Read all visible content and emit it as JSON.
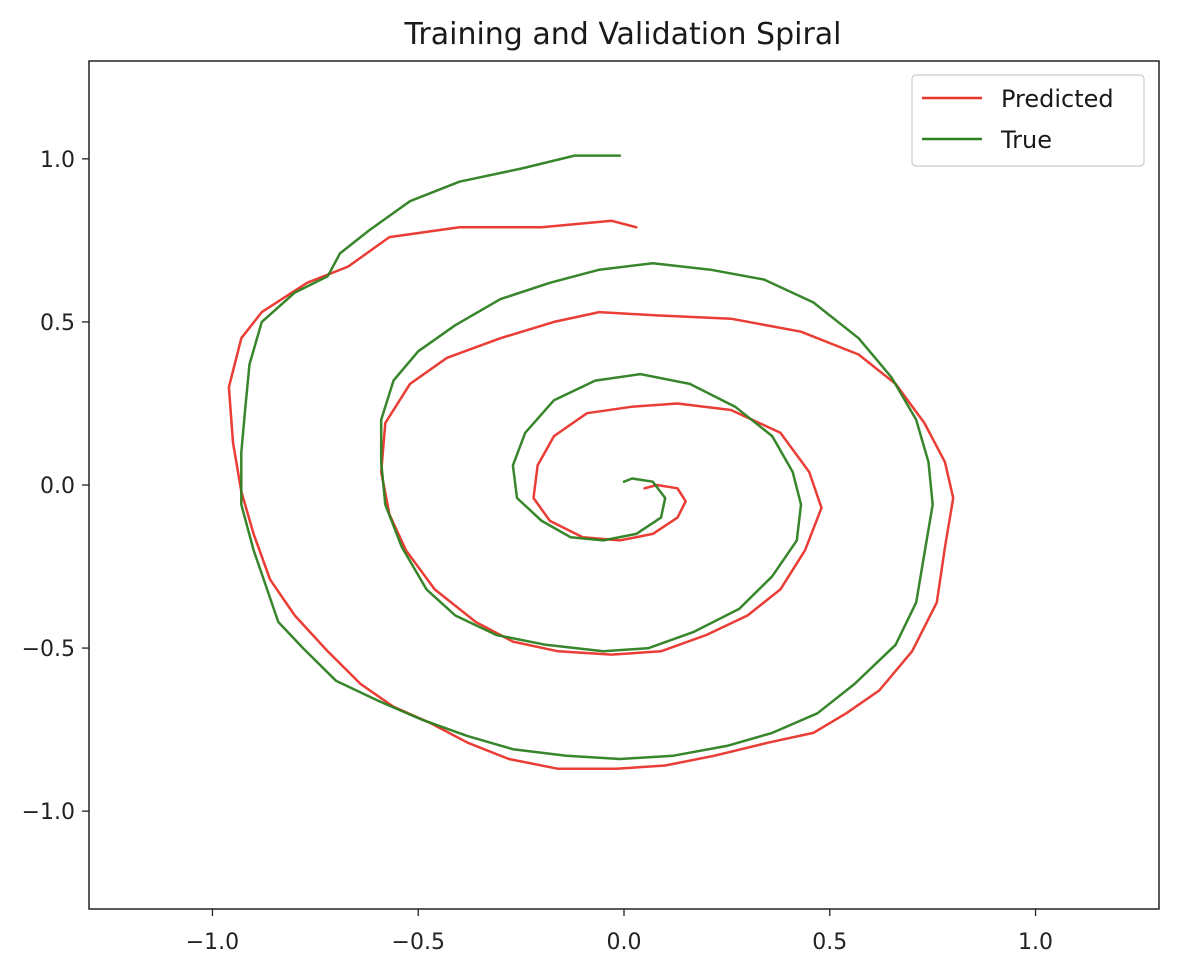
{
  "chart_data": {
    "type": "line",
    "title": "Training and Validation Spiral",
    "xlabel": "",
    "ylabel": "",
    "xlim": [
      -1.3,
      1.3
    ],
    "ylim": [
      -1.3,
      1.3
    ],
    "x_ticks": [
      -1.0,
      -0.5,
      0.0,
      0.5,
      1.0
    ],
    "y_ticks": [
      -1.0,
      -0.5,
      0.0,
      0.5,
      1.0
    ],
    "x_tick_labels": [
      "−1.0",
      "−0.5",
      "0.0",
      "0.5",
      "1.0"
    ],
    "y_tick_labels": [
      "−1.0",
      "−0.5",
      "0.0",
      "0.5",
      "1.0"
    ],
    "grid": false,
    "legend_position": "top-right",
    "series": [
      {
        "name": "Predicted",
        "color": "#e8332a",
        "points": [
          [
            0.03,
            0.79
          ],
          [
            -0.03,
            0.81
          ],
          [
            -0.2,
            0.79
          ],
          [
            -0.4,
            0.79
          ],
          [
            -0.57,
            0.76
          ],
          [
            -0.67,
            0.67
          ],
          [
            -0.77,
            0.62
          ],
          [
            -0.88,
            0.53
          ],
          [
            -0.93,
            0.45
          ],
          [
            -0.96,
            0.3
          ],
          [
            -0.95,
            0.13
          ],
          [
            -0.93,
            -0.02
          ],
          [
            -0.9,
            -0.15
          ],
          [
            -0.86,
            -0.29
          ],
          [
            -0.8,
            -0.4
          ],
          [
            -0.72,
            -0.51
          ],
          [
            -0.64,
            -0.61
          ],
          [
            -0.56,
            -0.68
          ],
          [
            -0.47,
            -0.73
          ],
          [
            -0.38,
            -0.79
          ],
          [
            -0.28,
            -0.84
          ],
          [
            -0.16,
            -0.87
          ],
          [
            -0.02,
            -0.87
          ],
          [
            0.1,
            -0.86
          ],
          [
            0.22,
            -0.83
          ],
          [
            0.35,
            -0.79
          ],
          [
            0.46,
            -0.76
          ],
          [
            0.54,
            -0.7
          ],
          [
            0.62,
            -0.63
          ],
          [
            0.7,
            -0.51
          ],
          [
            0.76,
            -0.36
          ],
          [
            0.78,
            -0.19
          ],
          [
            0.8,
            -0.04
          ],
          [
            0.78,
            0.07
          ],
          [
            0.73,
            0.19
          ],
          [
            0.66,
            0.31
          ],
          [
            0.57,
            0.4
          ],
          [
            0.43,
            0.47
          ],
          [
            0.26,
            0.51
          ],
          [
            0.08,
            0.52
          ],
          [
            -0.06,
            0.53
          ],
          [
            -0.17,
            0.5
          ],
          [
            -0.3,
            0.45
          ],
          [
            -0.43,
            0.39
          ],
          [
            -0.52,
            0.31
          ],
          [
            -0.58,
            0.19
          ],
          [
            -0.59,
            0.04
          ],
          [
            -0.57,
            -0.09
          ],
          [
            -0.53,
            -0.2
          ],
          [
            -0.46,
            -0.32
          ],
          [
            -0.36,
            -0.42
          ],
          [
            -0.27,
            -0.48
          ],
          [
            -0.16,
            -0.51
          ],
          [
            -0.03,
            -0.52
          ],
          [
            0.09,
            -0.51
          ],
          [
            0.2,
            -0.46
          ],
          [
            0.3,
            -0.4
          ],
          [
            0.38,
            -0.32
          ],
          [
            0.44,
            -0.2
          ],
          [
            0.48,
            -0.07
          ],
          [
            0.45,
            0.04
          ],
          [
            0.38,
            0.16
          ],
          [
            0.26,
            0.23
          ],
          [
            0.13,
            0.25
          ],
          [
            0.02,
            0.24
          ],
          [
            -0.09,
            0.22
          ],
          [
            -0.17,
            0.15
          ],
          [
            -0.21,
            0.06
          ],
          [
            -0.22,
            -0.04
          ],
          [
            -0.18,
            -0.11
          ],
          [
            -0.1,
            -0.16
          ],
          [
            -0.01,
            -0.17
          ],
          [
            0.07,
            -0.15
          ],
          [
            0.13,
            -0.1
          ],
          [
            0.15,
            -0.05
          ],
          [
            0.13,
            -0.01
          ],
          [
            0.08,
            0.0
          ],
          [
            0.05,
            -0.01
          ]
        ]
      },
      {
        "name": "True",
        "color": "#2d8020",
        "points": [
          [
            -0.01,
            1.01
          ],
          [
            -0.12,
            1.01
          ],
          [
            -0.25,
            0.97
          ],
          [
            -0.4,
            0.93
          ],
          [
            -0.52,
            0.87
          ],
          [
            -0.62,
            0.78
          ],
          [
            -0.69,
            0.71
          ],
          [
            -0.72,
            0.64
          ],
          [
            -0.8,
            0.59
          ],
          [
            -0.88,
            0.5
          ],
          [
            -0.91,
            0.37
          ],
          [
            -0.92,
            0.24
          ],
          [
            -0.93,
            0.1
          ],
          [
            -0.93,
            -0.06
          ],
          [
            -0.9,
            -0.2
          ],
          [
            -0.87,
            -0.31
          ],
          [
            -0.84,
            -0.42
          ],
          [
            -0.78,
            -0.5
          ],
          [
            -0.7,
            -0.6
          ],
          [
            -0.6,
            -0.66
          ],
          [
            -0.49,
            -0.72
          ],
          [
            -0.38,
            -0.77
          ],
          [
            -0.27,
            -0.81
          ],
          [
            -0.14,
            -0.83
          ],
          [
            -0.01,
            -0.84
          ],
          [
            0.12,
            -0.83
          ],
          [
            0.25,
            -0.8
          ],
          [
            0.36,
            -0.76
          ],
          [
            0.47,
            -0.7
          ],
          [
            0.56,
            -0.61
          ],
          [
            0.66,
            -0.49
          ],
          [
            0.71,
            -0.36
          ],
          [
            0.73,
            -0.21
          ],
          [
            0.75,
            -0.06
          ],
          [
            0.74,
            0.07
          ],
          [
            0.71,
            0.2
          ],
          [
            0.65,
            0.33
          ],
          [
            0.57,
            0.45
          ],
          [
            0.46,
            0.56
          ],
          [
            0.34,
            0.63
          ],
          [
            0.21,
            0.66
          ],
          [
            0.07,
            0.68
          ],
          [
            -0.06,
            0.66
          ],
          [
            -0.18,
            0.62
          ],
          [
            -0.3,
            0.57
          ],
          [
            -0.41,
            0.49
          ],
          [
            -0.5,
            0.41
          ],
          [
            -0.56,
            0.32
          ],
          [
            -0.59,
            0.2
          ],
          [
            -0.59,
            0.07
          ],
          [
            -0.58,
            -0.06
          ],
          [
            -0.54,
            -0.19
          ],
          [
            -0.48,
            -0.32
          ],
          [
            -0.41,
            -0.4
          ],
          [
            -0.31,
            -0.46
          ],
          [
            -0.19,
            -0.49
          ],
          [
            -0.05,
            -0.51
          ],
          [
            0.06,
            -0.5
          ],
          [
            0.17,
            -0.45
          ],
          [
            0.28,
            -0.38
          ],
          [
            0.36,
            -0.28
          ],
          [
            0.42,
            -0.17
          ],
          [
            0.43,
            -0.06
          ],
          [
            0.41,
            0.04
          ],
          [
            0.36,
            0.15
          ],
          [
            0.27,
            0.24
          ],
          [
            0.16,
            0.31
          ],
          [
            0.04,
            0.34
          ],
          [
            -0.07,
            0.32
          ],
          [
            -0.17,
            0.26
          ],
          [
            -0.24,
            0.16
          ],
          [
            -0.27,
            0.06
          ],
          [
            -0.26,
            -0.04
          ],
          [
            -0.2,
            -0.11
          ],
          [
            -0.13,
            -0.16
          ],
          [
            -0.05,
            -0.17
          ],
          [
            0.03,
            -0.15
          ],
          [
            0.09,
            -0.1
          ],
          [
            0.1,
            -0.04
          ],
          [
            0.07,
            0.01
          ],
          [
            0.02,
            0.02
          ],
          [
            0.0,
            0.01
          ]
        ]
      }
    ]
  }
}
